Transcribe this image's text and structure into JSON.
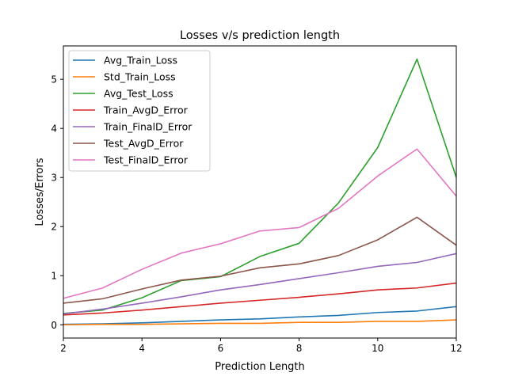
{
  "chart_data": {
    "type": "line",
    "title": "Losses v/s prediction length",
    "xlabel": "Prediction Length",
    "ylabel": "Losses/Errors",
    "xlim": [
      2,
      12
    ],
    "ylim": [
      -0.27,
      5.68
    ],
    "xticks": [
      2,
      4,
      6,
      8,
      10,
      12
    ],
    "yticks": [
      0,
      1,
      2,
      3,
      4,
      5
    ],
    "grid": false,
    "legend_position": "top-left",
    "x": [
      2,
      3,
      4,
      5,
      6,
      7,
      8,
      9,
      10,
      11,
      12
    ],
    "series": [
      {
        "name": "Avg_Train_Loss",
        "color": "#1f77b4",
        "values": [
          0.01,
          0.02,
          0.04,
          0.07,
          0.1,
          0.12,
          0.16,
          0.19,
          0.25,
          0.28,
          0.37
        ]
      },
      {
        "name": "Std_Train_Loss",
        "color": "#ff7f0e",
        "values": [
          0.0,
          0.01,
          0.01,
          0.02,
          0.03,
          0.03,
          0.05,
          0.05,
          0.07,
          0.07,
          0.1
        ]
      },
      {
        "name": "Avg_Test_Loss",
        "color": "#2ca02c",
        "values": [
          0.23,
          0.3,
          0.55,
          0.9,
          0.98,
          1.39,
          1.66,
          2.48,
          3.61,
          5.41,
          3.0
        ]
      },
      {
        "name": "Train_AvgD_Error",
        "color": "#d62728",
        "values": [
          0.2,
          0.24,
          0.3,
          0.37,
          0.44,
          0.5,
          0.56,
          0.63,
          0.71,
          0.75,
          0.85
        ]
      },
      {
        "name": "Train_FinalD_Error",
        "color": "#9467bd",
        "values": [
          0.22,
          0.32,
          0.44,
          0.57,
          0.71,
          0.82,
          0.94,
          1.06,
          1.19,
          1.27,
          1.45
        ]
      },
      {
        "name": "Test_AvgD_Error",
        "color": "#8c564b",
        "values": [
          0.44,
          0.53,
          0.73,
          0.91,
          0.99,
          1.16,
          1.24,
          1.41,
          1.73,
          2.19,
          1.62
        ]
      },
      {
        "name": "Test_FinalD_Error",
        "color": "#e377c2",
        "values": [
          0.54,
          0.75,
          1.13,
          1.46,
          1.65,
          1.91,
          1.98,
          2.37,
          3.03,
          3.58,
          2.62
        ]
      }
    ]
  }
}
